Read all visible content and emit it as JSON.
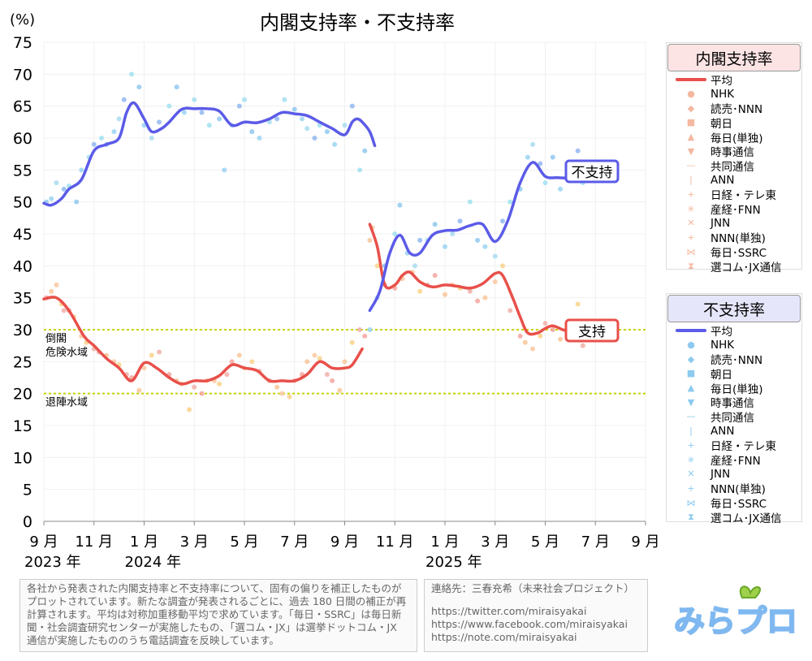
{
  "chart_data": {
    "type": "line",
    "title": "内閣支持率・不支持率",
    "yunit": "(%)",
    "ylim": [
      0,
      75
    ],
    "yticks": [
      0,
      5,
      10,
      15,
      20,
      25,
      30,
      35,
      40,
      45,
      50,
      55,
      60,
      65,
      70,
      75
    ],
    "xlim": [
      0,
      24
    ],
    "xticks": [
      {
        "x": 0,
        "label": "9 月"
      },
      {
        "x": 2,
        "label": "11 月"
      },
      {
        "x": 4,
        "label": "1 月"
      },
      {
        "x": 6,
        "label": "3 月"
      },
      {
        "x": 8,
        "label": "5 月"
      },
      {
        "x": 10,
        "label": "7 月"
      },
      {
        "x": 12,
        "label": "9 月"
      },
      {
        "x": 14,
        "label": "11 月"
      },
      {
        "x": 16,
        "label": "1 月"
      },
      {
        "x": 18,
        "label": "3 月"
      },
      {
        "x": 20,
        "label": "5 月"
      },
      {
        "x": 22,
        "label": "7 月"
      },
      {
        "x": 24,
        "label": "9 月"
      }
    ],
    "year_labels": [
      {
        "x": 0,
        "label": "2023 年"
      },
      {
        "x": 4,
        "label": "2024 年"
      },
      {
        "x": 16,
        "label": "2025 年"
      }
    ],
    "reference_lines": [
      {
        "y": 30,
        "label": "倒閣\n危険水域",
        "color": "#c8d400"
      },
      {
        "y": 20,
        "label": "退陣水域",
        "color": "#c8d400"
      }
    ],
    "end_labels": {
      "disapprove": "不支持",
      "approve": "支持"
    },
    "series": [
      {
        "name": "平均",
        "group": "支持",
        "color": "#e8504a",
        "segments": [
          [
            [
              0,
              34.8
            ],
            [
              0.5,
              35
            ],
            [
              1,
              33
            ],
            [
              1.6,
              29
            ],
            [
              2,
              27.5
            ],
            [
              2.5,
              25.5
            ],
            [
              3,
              24
            ],
            [
              3.5,
              22
            ],
            [
              4,
              24.8
            ],
            [
              4.5,
              24
            ],
            [
              5,
              22.5
            ],
            [
              5.5,
              21.5
            ],
            [
              6,
              22
            ],
            [
              6.5,
              22
            ],
            [
              7,
              22.8
            ],
            [
              7.5,
              24.5
            ],
            [
              8,
              24
            ],
            [
              8.5,
              23.6
            ],
            [
              9,
              22
            ],
            [
              9.5,
              22
            ],
            [
              10,
              22
            ],
            [
              10.5,
              23
            ],
            [
              11,
              25
            ],
            [
              11.5,
              24
            ],
            [
              12,
              24
            ],
            [
              12.3,
              24.5
            ],
            [
              12.7,
              27
            ]
          ],
          [
            [
              13,
              46.5
            ],
            [
              13.3,
              43
            ],
            [
              13.6,
              37
            ],
            [
              14,
              37
            ],
            [
              14.3,
              38.5
            ],
            [
              14.6,
              39
            ],
            [
              15,
              37.5
            ],
            [
              15.5,
              36.7
            ],
            [
              16,
              37
            ],
            [
              16.5,
              36.8
            ],
            [
              17,
              36.5
            ],
            [
              17.5,
              37.2
            ],
            [
              18,
              38.8
            ],
            [
              18.3,
              38.5
            ],
            [
              18.7,
              35
            ],
            [
              19,
              32
            ],
            [
              19.3,
              29.5
            ],
            [
              19.7,
              29.5
            ],
            [
              20,
              30.2
            ],
            [
              20.3,
              30.6
            ],
            [
              20.7,
              30
            ],
            [
              21,
              29.7
            ],
            [
              21.3,
              29.8
            ]
          ]
        ]
      },
      {
        "name": "平均",
        "group": "不支持",
        "color": "#5b5be8",
        "segments": [
          [
            [
              0,
              49.8
            ],
            [
              0.3,
              49.5
            ],
            [
              0.7,
              50.5
            ],
            [
              1,
              52
            ],
            [
              1.5,
              53.5
            ],
            [
              2,
              58
            ],
            [
              2.5,
              59
            ],
            [
              3,
              60
            ],
            [
              3.3,
              64
            ],
            [
              3.6,
              65.5
            ],
            [
              4,
              63
            ],
            [
              4.3,
              61
            ],
            [
              4.7,
              61.5
            ],
            [
              5,
              62.5
            ],
            [
              5.5,
              64.5
            ],
            [
              6,
              64.6
            ],
            [
              6.5,
              64.6
            ],
            [
              7,
              64.2
            ],
            [
              7.5,
              62
            ],
            [
              8,
              62.5
            ],
            [
              8.5,
              62.4
            ],
            [
              9,
              63
            ],
            [
              9.5,
              64
            ],
            [
              10,
              63.8
            ],
            [
              10.5,
              63.5
            ],
            [
              11,
              62.5
            ],
            [
              11.5,
              61.5
            ],
            [
              12,
              60.5
            ],
            [
              12.3,
              62.5
            ],
            [
              12.5,
              63
            ],
            [
              12.7,
              62.5
            ],
            [
              13,
              61
            ],
            [
              13.2,
              58.8
            ]
          ],
          [
            [
              13,
              33
            ],
            [
              13.4,
              36
            ],
            [
              13.8,
              42
            ],
            [
              14.2,
              44.8
            ],
            [
              14.6,
              42
            ],
            [
              15,
              42
            ],
            [
              15.5,
              44.8
            ],
            [
              16,
              45.5
            ],
            [
              16.5,
              45.6
            ],
            [
              17,
              46.3
            ],
            [
              17.5,
              46.5
            ],
            [
              18,
              43.8
            ],
            [
              18.5,
              47
            ],
            [
              19,
              53
            ],
            [
              19.5,
              56.2
            ],
            [
              20,
              54
            ],
            [
              20.5,
              53.8
            ],
            [
              21,
              53.8
            ],
            [
              21.5,
              54.5
            ],
            [
              21.7,
              54.8
            ]
          ]
        ]
      }
    ],
    "scatter_approve": [
      [
        0.1,
        35
      ],
      [
        0.3,
        36
      ],
      [
        0.5,
        37
      ],
      [
        0.7,
        34
      ],
      [
        0.8,
        33
      ],
      [
        1,
        33
      ],
      [
        1.2,
        32
      ],
      [
        1.5,
        29
      ],
      [
        1.7,
        28
      ],
      [
        2,
        27
      ],
      [
        2.2,
        26.5
      ],
      [
        2.5,
        26
      ],
      [
        2.8,
        25
      ],
      [
        3,
        24.5
      ],
      [
        3.3,
        23
      ],
      [
        3.5,
        22.5
      ],
      [
        3.8,
        20.5
      ],
      [
        4,
        24
      ],
      [
        4.3,
        26
      ],
      [
        4.6,
        26.5
      ],
      [
        5,
        23
      ],
      [
        5.3,
        22
      ],
      [
        5.5,
        21.5
      ],
      [
        5.8,
        17.5
      ],
      [
        6,
        21
      ],
      [
        6.3,
        20
      ],
      [
        6.5,
        22
      ],
      [
        6.8,
        22
      ],
      [
        7,
        21.5
      ],
      [
        7.3,
        23
      ],
      [
        7.5,
        25
      ],
      [
        7.8,
        26
      ],
      [
        8,
        24
      ],
      [
        8.3,
        25
      ],
      [
        8.6,
        23.5
      ],
      [
        9,
        22
      ],
      [
        9.3,
        21
      ],
      [
        9.5,
        20
      ],
      [
        9.8,
        19.5
      ],
      [
        10,
        22
      ],
      [
        10.3,
        23
      ],
      [
        10.5,
        25
      ],
      [
        10.8,
        26
      ],
      [
        11,
        25.5
      ],
      [
        11.3,
        23
      ],
      [
        11.5,
        22
      ],
      [
        11.8,
        20.5
      ],
      [
        12,
        25
      ],
      [
        12.3,
        28
      ],
      [
        12.6,
        30
      ],
      [
        12.8,
        29
      ],
      [
        13,
        44
      ],
      [
        13.1,
        46
      ],
      [
        13.3,
        40
      ],
      [
        13.6,
        37
      ],
      [
        14,
        36.5
      ],
      [
        14.3,
        38
      ],
      [
        14.7,
        39
      ],
      [
        15,
        36
      ],
      [
        15.3,
        37
      ],
      [
        15.6,
        38.5
      ],
      [
        16,
        35.5
      ],
      [
        16.3,
        37
      ],
      [
        16.6,
        36.5
      ],
      [
        17,
        36
      ],
      [
        17.3,
        34.5
      ],
      [
        17.6,
        35
      ],
      [
        18,
        37.5
      ],
      [
        18.3,
        40
      ],
      [
        18.6,
        33
      ],
      [
        19,
        29
      ],
      [
        19.2,
        28
      ],
      [
        19.5,
        27
      ],
      [
        19.8,
        29
      ],
      [
        20,
        31
      ],
      [
        20.3,
        30
      ],
      [
        20.6,
        28.5
      ],
      [
        21,
        29
      ],
      [
        21.3,
        34
      ],
      [
        21.5,
        27.5
      ]
    ],
    "scatter_disapprove": [
      [
        0.1,
        50
      ],
      [
        0.3,
        50.5
      ],
      [
        0.5,
        53
      ],
      [
        0.8,
        52
      ],
      [
        1,
        52.5
      ],
      [
        1.3,
        50
      ],
      [
        1.5,
        55
      ],
      [
        1.8,
        57
      ],
      [
        2,
        59
      ],
      [
        2.3,
        60
      ],
      [
        2.5,
        59
      ],
      [
        2.8,
        61
      ],
      [
        3,
        63
      ],
      [
        3.2,
        66
      ],
      [
        3.5,
        70
      ],
      [
        3.8,
        68
      ],
      [
        4,
        62
      ],
      [
        4.3,
        60
      ],
      [
        4.6,
        62.5
      ],
      [
        5,
        65
      ],
      [
        5.3,
        68
      ],
      [
        5.6,
        64
      ],
      [
        6,
        66
      ],
      [
        6.3,
        64
      ],
      [
        6.6,
        62
      ],
      [
        7,
        63
      ],
      [
        7.2,
        55
      ],
      [
        7.5,
        62
      ],
      [
        7.8,
        65
      ],
      [
        8,
        66
      ],
      [
        8.3,
        61
      ],
      [
        8.6,
        60
      ],
      [
        9,
        62.5
      ],
      [
        9.3,
        63
      ],
      [
        9.6,
        66
      ],
      [
        10,
        64.5
      ],
      [
        10.3,
        63
      ],
      [
        10.5,
        61.5
      ],
      [
        10.8,
        60
      ],
      [
        11,
        62
      ],
      [
        11.3,
        61
      ],
      [
        11.6,
        59
      ],
      [
        12,
        62
      ],
      [
        12.3,
        65
      ],
      [
        12.6,
        55
      ],
      [
        12.8,
        58
      ],
      [
        13,
        30
      ],
      [
        13.3,
        35
      ],
      [
        13.6,
        40
      ],
      [
        14,
        45
      ],
      [
        14.2,
        49.5
      ],
      [
        14.5,
        42
      ],
      [
        14.8,
        40
      ],
      [
        15,
        44
      ],
      [
        15.3,
        44
      ],
      [
        15.6,
        46.5
      ],
      [
        16,
        43
      ],
      [
        16.3,
        45
      ],
      [
        16.6,
        47
      ],
      [
        17,
        50
      ],
      [
        17.3,
        44
      ],
      [
        17.6,
        43
      ],
      [
        18,
        41.5
      ],
      [
        18.3,
        47
      ],
      [
        18.6,
        50
      ],
      [
        19,
        52
      ],
      [
        19.3,
        57
      ],
      [
        19.5,
        59
      ],
      [
        19.8,
        56
      ],
      [
        20,
        53
      ],
      [
        20.3,
        57
      ],
      [
        20.6,
        52
      ],
      [
        21,
        56
      ],
      [
        21.3,
        58
      ],
      [
        21.5,
        53
      ]
    ]
  },
  "legend_approve": {
    "title": "内閣支持率",
    "items": [
      {
        "label": "平均",
        "sym": "line"
      },
      {
        "label": "NHK",
        "sym": "●"
      },
      {
        "label": "読売･NNN",
        "sym": "◆"
      },
      {
        "label": "朝日",
        "sym": "■"
      },
      {
        "label": "毎日(単独)",
        "sym": "▲"
      },
      {
        "label": "時事通信",
        "sym": "▼"
      },
      {
        "label": "共同通信",
        "sym": "—"
      },
      {
        "label": "ANN",
        "sym": "|"
      },
      {
        "label": "日経・テレ東",
        "sym": "+"
      },
      {
        "label": "産経･FNN",
        "sym": "✳"
      },
      {
        "label": "JNN",
        "sym": "✕"
      },
      {
        "label": "NNN(単独)",
        "sym": "+"
      },
      {
        "label": "毎日･SSRC",
        "sym": "⋈"
      },
      {
        "label": "選コム･JX通信",
        "sym": "⧗"
      }
    ]
  },
  "legend_disapprove": {
    "title": "不支持率",
    "items": [
      {
        "label": "平均",
        "sym": "line"
      },
      {
        "label": "NHK",
        "sym": "●"
      },
      {
        "label": "読売･NNN",
        "sym": "◆"
      },
      {
        "label": "朝日",
        "sym": "■"
      },
      {
        "label": "毎日(単独)",
        "sym": "▲"
      },
      {
        "label": "時事通信",
        "sym": "▼"
      },
      {
        "label": "共同通信",
        "sym": "—"
      },
      {
        "label": "ANN",
        "sym": "|"
      },
      {
        "label": "日経・テレ東",
        "sym": "+"
      },
      {
        "label": "産経･FNN",
        "sym": "✳"
      },
      {
        "label": "JNN",
        "sym": "✕"
      },
      {
        "label": "NNN(単独)",
        "sym": "+"
      },
      {
        "label": "毎日･SSRC",
        "sym": "⋈"
      },
      {
        "label": "選コム･JX通信",
        "sym": "⧗"
      }
    ]
  },
  "notes": {
    "left": "各社から発表された内閣支持率と不支持率について、固有の偏りを補正したものがプロットされています。新たな調査が発表されるごとに、過去 180 日間の補正が再計算されます。平均は対称加重移動平均で求めています。「毎日・SSRC」は毎日新聞・社会調査研究センターが実施したもの、「選コム・JX」は選挙ドットコム・JX 通信が実施したもののうち電話調査を反映しています。",
    "contact": "連絡先：三春充希（未来社会プロジェクト）",
    "links": [
      "https://twitter.com/miraisyakai",
      "https://www.facebook.com/miraisyakai",
      "https://note.com/miraisyakai"
    ]
  },
  "logo_text": "みらプロ",
  "colors": {
    "approve": "#e8504a",
    "disapprove": "#5b5be8",
    "approve_head": "#fde4e4",
    "disapprove_head": "#e6e6fa",
    "threshold": "#c8d400"
  }
}
